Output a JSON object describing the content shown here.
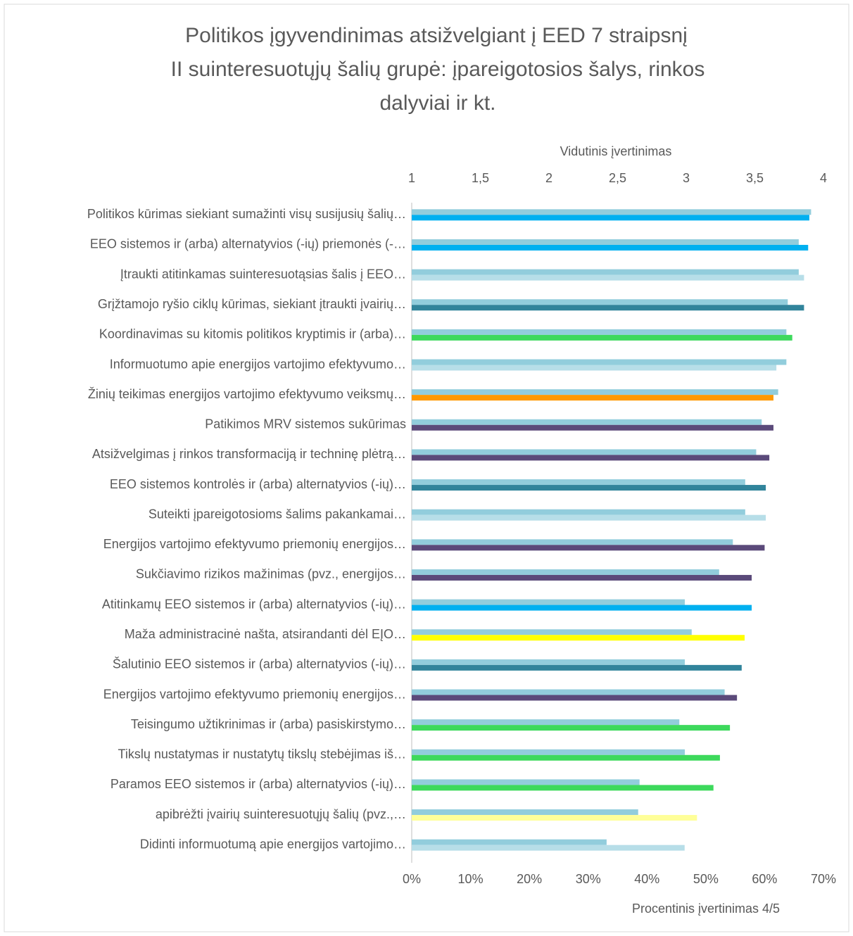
{
  "chart_data": {
    "type": "hbar",
    "title": [
      "Politikos įgyvendinimas atsižvelgiant į EED 7 straipsnį",
      "II suinteresuotųjų šalių grupė: įpareigotosios šalys, rinkos",
      "dalyviai ir kt."
    ],
    "xlabel": "Procentinis įvertinimas 4/5",
    "x2label": "Vidutinis įvertinimas",
    "categories": [
      "Politikos kūrimas siekiant sumažinti visų susijusių šalių…",
      "EEO sistemos ir (arba) alternatyvios (-ių) priemonės (-…",
      "Įtraukti atitinkamas suinteresuotąsias šalis į EEO…",
      "Grįžtamojo ryšio ciklų kūrimas, siekiant įtraukti įvairių…",
      "Koordinavimas su kitomis politikos kryptimis ir (arba)…",
      "Informuotumo apie energijos vartojimo efektyvumo…",
      "Žinių teikimas energijos vartojimo efektyvumo veiksmų…",
      "Patikimos MRV sistemos sukūrimas",
      "Atsižvelgimas į rinkos transformaciją ir techninę plėtrą…",
      "EEO sistemos kontrolės ir (arba) alternatyvios (-ių)…",
      "Suteikti įpareigotosioms šalims pakankamai…",
      "Energijos vartojimo efektyvumo priemonių energijos…",
      "Sukčiavimo rizikos mažinimas (pvz., energijos…",
      "Atitinkamų EEO sistemos ir (arba) alternatyvios (-ių)…",
      "Maža administracinė našta, atsirandanti dėl EĮO…",
      "Šalutinio EEO sistemos ir (arba) alternatyvios (-ių)…",
      "Energijos vartojimo efektyvumo priemonių energijos…",
      "Teisingumo užtikrinimas ir (arba) pasiskirstymo…",
      "Tikslų nustatymas ir nustatytų tikslų stebėjimas iš…",
      "Paramos EEO sistemos ir (arba) alternatyvios (-ių)…",
      "apibrėžti įvairių suinteresuotųjų šalių (pvz.,…",
      "Didinti informuotumą apie energijos vartojimo…"
    ],
    "series": [
      {
        "axis": "x2",
        "color": "#92cddc",
        "values": [
          3.91,
          3.82,
          3.82,
          3.74,
          3.73,
          3.73,
          3.67,
          3.55,
          3.51,
          3.43,
          3.43,
          3.34,
          3.24,
          2.99,
          3.04,
          2.99,
          3.28,
          2.95,
          2.99,
          2.66,
          2.65,
          2.42
        ]
      },
      {
        "colors": [
          "#00b0f0",
          "#00b0f0",
          "#b7dee8",
          "#31849b",
          "#3dd95c",
          "#b7dee8",
          "#ff9900",
          "#5b4a7a",
          "#5b4a7a",
          "#31849b",
          "#b7dee8",
          "#5b4a7a",
          "#5b4a7a",
          "#00b0f0",
          "#ffff00",
          "#31849b",
          "#5b4a7a",
          "#3dd95c",
          "#3dd95c",
          "#3dd95c",
          "#ffff99",
          "#b7dee8"
        ],
        "values": [
          67.6,
          67.4,
          66.7,
          66.7,
          64.7,
          62.0,
          61.5,
          61.5,
          60.8,
          60.2,
          60.2,
          60.0,
          57.8,
          57.8,
          56.6,
          56.1,
          55.3,
          54.1,
          52.4,
          51.3,
          48.5,
          46.4
        ]
      }
    ],
    "xlim": [
      0,
      70
    ],
    "xticks": [
      {
        "value": 0,
        "label": "0%"
      },
      {
        "value": 10,
        "label": "10%"
      },
      {
        "value": 20,
        "label": "20%"
      },
      {
        "value": 30,
        "label": "30%"
      },
      {
        "value": 40,
        "label": "40%"
      },
      {
        "value": 50,
        "label": "50%"
      },
      {
        "value": 60,
        "label": "60%"
      },
      {
        "value": 70,
        "label": "70%"
      }
    ],
    "x2lim": [
      1,
      4
    ],
    "x2ticks": [
      1,
      {
        "value": 1.5,
        "label": "1,5"
      },
      2,
      {
        "value": 2.5,
        "label": "2,5"
      },
      3,
      {
        "value": 3.5,
        "label": "3,5"
      },
      4
    ]
  }
}
